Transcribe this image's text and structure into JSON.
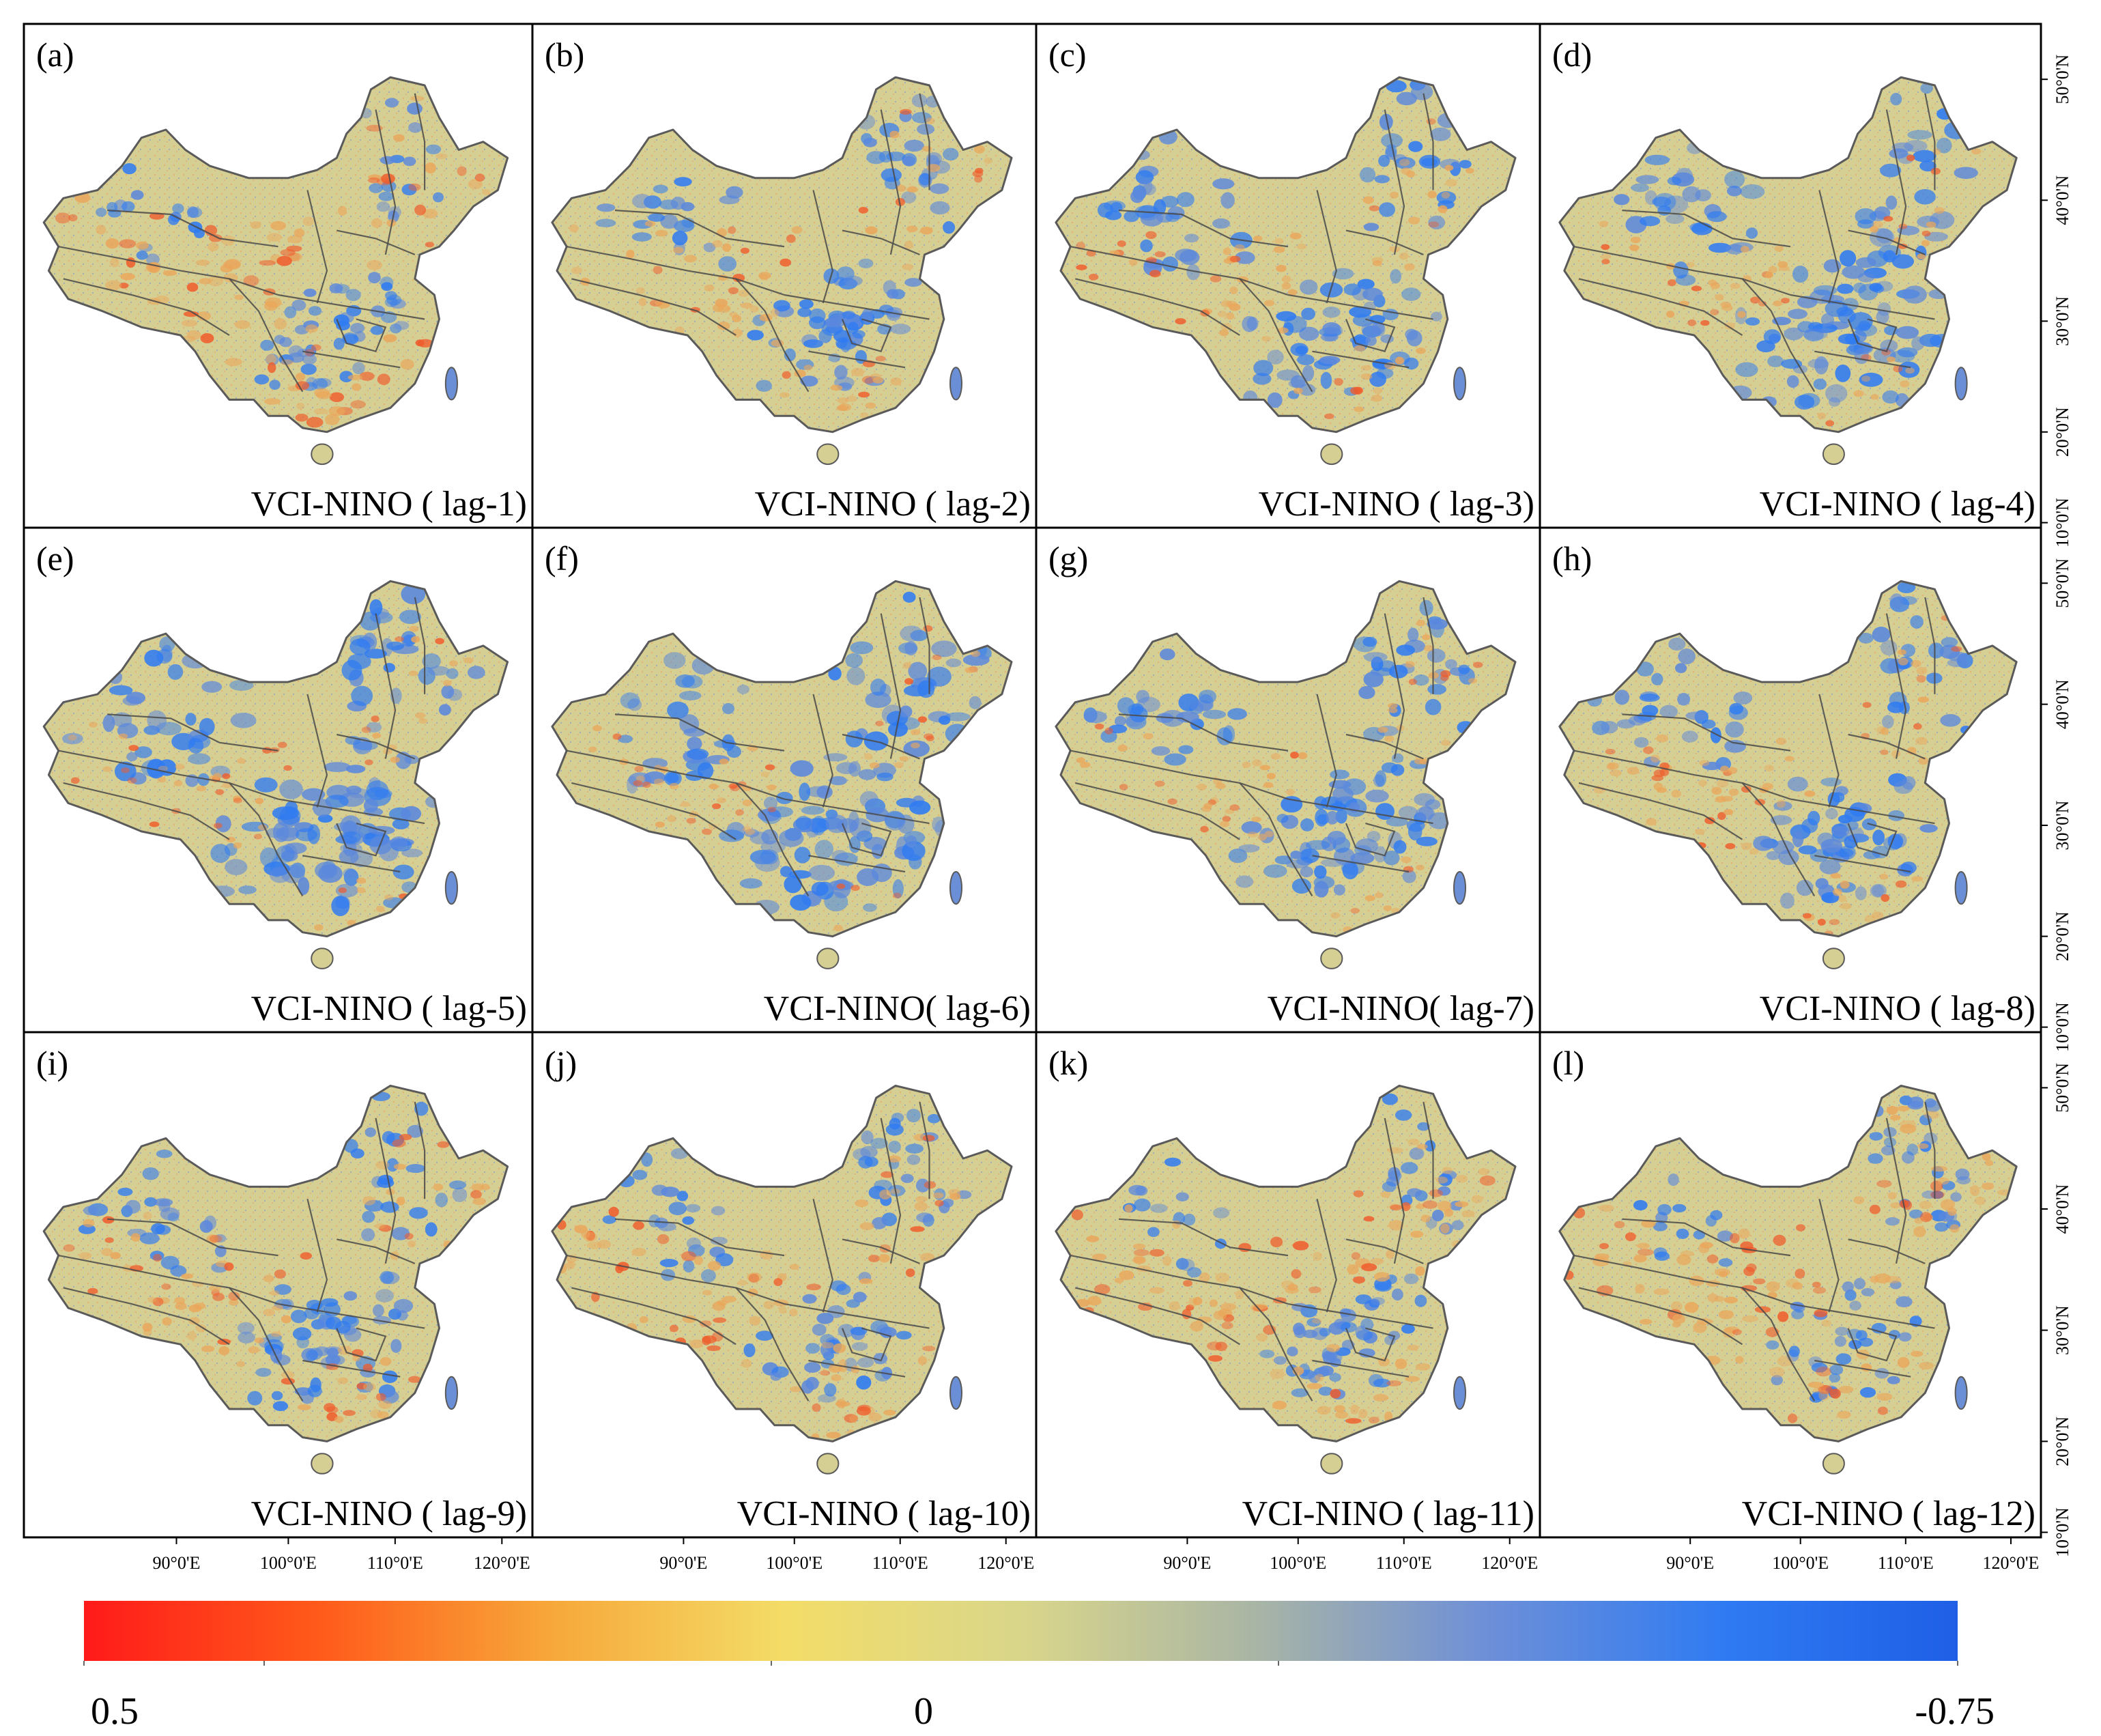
{
  "figure": {
    "panels": [
      {
        "letter": "(a)",
        "title": "VCI-NINO ( lag-1)",
        "lag": 1,
        "pattern": {
          "blue": 0.25,
          "orange": 0.55
        }
      },
      {
        "letter": "(b)",
        "title": "VCI-NINO ( lag-2)",
        "lag": 2,
        "pattern": {
          "blue": 0.45,
          "orange": 0.3
        }
      },
      {
        "letter": "(c)",
        "title": "VCI-NINO ( lag-3)",
        "lag": 3,
        "pattern": {
          "blue": 0.55,
          "orange": 0.22
        }
      },
      {
        "letter": "(d)",
        "title": "VCI-NINO ( lag-4)",
        "lag": 4,
        "pattern": {
          "blue": 0.65,
          "orange": 0.15
        }
      },
      {
        "letter": "(e)",
        "title": "VCI-NINO ( lag-5)",
        "lag": 5,
        "pattern": {
          "blue": 0.75,
          "orange": 0.12
        }
      },
      {
        "letter": "(f)",
        "title": "VCI-NINO( lag-6)",
        "lag": 6,
        "pattern": {
          "blue": 0.72,
          "orange": 0.12
        }
      },
      {
        "letter": "(g)",
        "title": "VCI-NINO( lag-7)",
        "lag": 7,
        "pattern": {
          "blue": 0.62,
          "orange": 0.15
        }
      },
      {
        "letter": "(h)",
        "title": "VCI-NINO ( lag-8)",
        "lag": 8,
        "pattern": {
          "blue": 0.5,
          "orange": 0.25
        }
      },
      {
        "letter": "(i)",
        "title": "VCI-NINO ( lag-9)",
        "lag": 9,
        "pattern": {
          "blue": 0.42,
          "orange": 0.35
        }
      },
      {
        "letter": "(j)",
        "title": "VCI-NINO ( lag-10)",
        "lag": 10,
        "pattern": {
          "blue": 0.36,
          "orange": 0.42
        }
      },
      {
        "letter": "(k)",
        "title": "VCI-NINO ( lag-11)",
        "lag": 11,
        "pattern": {
          "blue": 0.3,
          "orange": 0.48
        }
      },
      {
        "letter": "(l)",
        "title": "VCI-NINO ( lag-12)",
        "lag": 12,
        "pattern": {
          "blue": 0.26,
          "orange": 0.52
        }
      }
    ],
    "lat_labels": [
      "50°0'N",
      "40°0'N",
      "30°0'N",
      "20°0'N",
      "10°0'N"
    ],
    "lon_labels": [
      "90°0'E",
      "100°0'E",
      "110°0'E",
      "120°0'E"
    ],
    "colorbar": {
      "min_label": "0.5",
      "mid_label": "0",
      "max_label": "-0.75",
      "stops": [
        "#ff1a1a",
        "#ff5a1a",
        "#f7a83a",
        "#f3dd68",
        "#d9d68a",
        "#a9b5a5",
        "#6d8fd8",
        "#2f7bf2",
        "#1f5fe6"
      ]
    },
    "colors": {
      "high_positive": "#f07a3a",
      "neutral": "#d6cf93",
      "negative": "#3f78e8"
    }
  }
}
